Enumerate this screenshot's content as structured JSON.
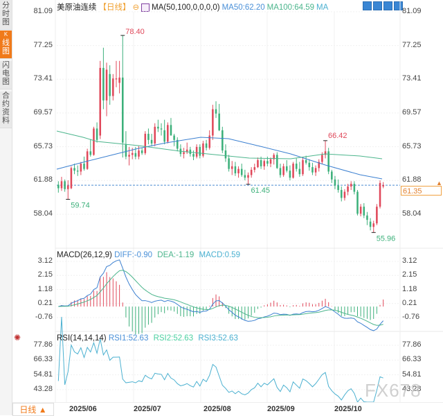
{
  "sidebar": {
    "tabs": [
      {
        "label": "分时图",
        "active": false
      },
      {
        "label": "K线图",
        "k": "K",
        "rest": "线图",
        "active": true
      },
      {
        "label": "闪电图",
        "active": false
      },
      {
        "label": "合约资料",
        "active": false
      }
    ]
  },
  "header": {
    "instrument": "美原油连续",
    "period": "【日线】",
    "ma_label": "MA(50,100,0,0,0,0)",
    "ma50": "MA50:62.20",
    "ma100": "MA100:64.59",
    "ma_extra": "MA",
    "toolbar_icons": [
      "crosshair-icon",
      "chart-icon",
      "draw-icon",
      "exit-icon"
    ]
  },
  "price_axis": [
    "81.09",
    "77.25",
    "73.41",
    "69.57",
    "65.73",
    "61.88",
    "58.04"
  ],
  "macd": {
    "label": "MACD(26,12,9)",
    "diff": "DIFF:-0.90",
    "dea": "DEA:-1.19",
    "macd": "MACD:0.59",
    "axis": [
      "3.12",
      "2.15",
      "1.18",
      "0.21",
      "-0.76"
    ]
  },
  "rsi": {
    "label": "RSI(14,14,14)",
    "rsi1": "RSI1:52.63",
    "rsi2": "RSI2:52.63",
    "rsi3": "RSI3:52.63",
    "axis": [
      "77.86",
      "66.33",
      "54.81",
      "43.28"
    ]
  },
  "last_price": "61.35",
  "annotations": {
    "high1": "78.40",
    "low1": "59.74",
    "low2": "61.45",
    "high2": "66.42",
    "low3": "55.96"
  },
  "bottom": {
    "period_select": "日线 ▲",
    "x_labels": [
      "2025/06",
      "2025/07",
      "2025/08",
      "2025/09",
      "2025/10"
    ]
  },
  "watermark": "FX678",
  "colors": {
    "up": "#e0485a",
    "down": "#3cb07a",
    "ma50": "#3a7fd0",
    "ma100": "#4bb58c",
    "accent": "#f07a1a"
  },
  "chart_data": {
    "type": "candlestick",
    "title": "美原油连续 【日线】",
    "ylim": [
      55,
      81.09
    ],
    "x_tick_labels": [
      "2025/06",
      "2025/07",
      "2025/08",
      "2025/09",
      "2025/10"
    ],
    "annotations": [
      {
        "label": "78.40",
        "type": "high"
      },
      {
        "label": "59.74",
        "type": "low"
      },
      {
        "label": "61.45",
        "type": "low"
      },
      {
        "label": "66.42",
        "type": "high"
      },
      {
        "label": "55.96",
        "type": "low"
      }
    ],
    "candles": [
      [
        61.4,
        61.8,
        60.5,
        61.0
      ],
      [
        61.0,
        62.3,
        60.7,
        61.8
      ],
      [
        61.8,
        62.0,
        60.6,
        60.9
      ],
      [
        60.9,
        61.9,
        59.74,
        61.3
      ],
      [
        61.0,
        63.5,
        60.9,
        63.3
      ],
      [
        63.3,
        63.8,
        62.6,
        63.0
      ],
      [
        63.0,
        63.6,
        62.4,
        62.9
      ],
      [
        62.9,
        64.0,
        62.5,
        63.8
      ],
      [
        63.8,
        64.6,
        63.0,
        63.2
      ],
      [
        63.2,
        65.5,
        63.1,
        65.2
      ],
      [
        65.2,
        66.6,
        64.6,
        64.8
      ],
      [
        64.8,
        68.0,
        64.7,
        67.8
      ],
      [
        67.8,
        68.5,
        66.2,
        66.5
      ],
      [
        67.0,
        75.5,
        66.6,
        74.7
      ],
      [
        74.7,
        77.0,
        70.0,
        71.0
      ],
      [
        71.0,
        75.3,
        69.2,
        74.5
      ],
      [
        74.0,
        75.0,
        70.5,
        71.5
      ],
      [
        71.5,
        74.0,
        71.0,
        73.5
      ],
      [
        73.4,
        75.5,
        72.5,
        73.5
      ],
      [
        73.0,
        75.5,
        71.8,
        73.6
      ],
      [
        73.6,
        78.4,
        64.5,
        66.2
      ],
      [
        66.0,
        67.5,
        64.3,
        64.6
      ],
      [
        64.6,
        65.7,
        63.6,
        64.8
      ],
      [
        64.8,
        65.6,
        64.3,
        65.0
      ],
      [
        65.0,
        65.7,
        64.3,
        64.6
      ],
      [
        64.6,
        65.8,
        64.3,
        65.3
      ],
      [
        65.3,
        65.6,
        64.8,
        65.0
      ],
      [
        65.0,
        67.5,
        64.8,
        67.2
      ],
      [
        67.2,
        67.8,
        66.0,
        66.5
      ],
      [
        66.5,
        67.2,
        65.8,
        66.1
      ],
      [
        66.1,
        68.4,
        65.8,
        68.0
      ],
      [
        68.0,
        68.8,
        67.4,
        67.8
      ],
      [
        67.8,
        68.4,
        67.0,
        67.7
      ],
      [
        67.6,
        68.8,
        66.0,
        66.3
      ],
      [
        66.3,
        68.5,
        66.1,
        68.2
      ],
      [
        68.2,
        69.0,
        67.5,
        67.0
      ],
      [
        67.0,
        67.2,
        65.8,
        66.5
      ],
      [
        66.5,
        66.8,
        65.2,
        65.5
      ],
      [
        65.5,
        66.0,
        64.6,
        64.9
      ],
      [
        64.9,
        65.6,
        64.4,
        65.1
      ],
      [
        65.1,
        66.2,
        64.9,
        65.4
      ],
      [
        65.4,
        65.7,
        64.6,
        64.9
      ],
      [
        64.9,
        65.3,
        64.2,
        64.6
      ],
      [
        64.6,
        66.0,
        64.4,
        65.7
      ],
      [
        65.7,
        66.0,
        64.4,
        64.7
      ],
      [
        64.7,
        66.4,
        64.5,
        66.1
      ],
      [
        66.1,
        66.5,
        65.3,
        65.6
      ],
      [
        65.6,
        67.6,
        65.4,
        67.0
      ],
      [
        67.0,
        70.5,
        66.5,
        70.0
      ],
      [
        70.0,
        70.9,
        69.0,
        69.5
      ],
      [
        69.5,
        70.6,
        67.5,
        67.6
      ],
      [
        67.6,
        68.0,
        65.0,
        65.3
      ],
      [
        65.3,
        66.0,
        64.0,
        64.4
      ],
      [
        64.4,
        64.8,
        62.9,
        63.2
      ],
      [
        63.2,
        64.1,
        62.5,
        63.5
      ],
      [
        63.5,
        64.0,
        62.4,
        62.7
      ],
      [
        62.7,
        63.5,
        62.2,
        63.2
      ],
      [
        63.2,
        63.8,
        62.3,
        62.5
      ],
      [
        62.5,
        63.1,
        61.9,
        62.2
      ],
      [
        62.2,
        62.8,
        61.45,
        62.5
      ],
      [
        62.5,
        63.4,
        62.2,
        63.1
      ],
      [
        63.1,
        63.8,
        62.8,
        63.4
      ],
      [
        63.4,
        64.5,
        63.3,
        64.2
      ],
      [
        64.2,
        64.6,
        63.2,
        63.5
      ],
      [
        63.5,
        64.3,
        63.1,
        64.1
      ],
      [
        64.1,
        64.6,
        63.5,
        63.8
      ],
      [
        63.8,
        64.5,
        63.4,
        64.3
      ],
      [
        64.3,
        65.0,
        63.7,
        64.8
      ],
      [
        64.8,
        65.1,
        63.2,
        63.3
      ],
      [
        63.3,
        63.8,
        62.2,
        62.5
      ],
      [
        62.5,
        63.8,
        62.3,
        63.5
      ],
      [
        63.5,
        64.2,
        62.8,
        63.0
      ],
      [
        63.0,
        63.6,
        61.9,
        62.2
      ],
      [
        62.2,
        64.0,
        62.1,
        63.8
      ],
      [
        63.8,
        64.4,
        62.9,
        63.2
      ],
      [
        63.2,
        64.0,
        62.3,
        62.6
      ],
      [
        62.6,
        64.5,
        62.4,
        64.2
      ],
      [
        64.2,
        64.7,
        63.7,
        63.9
      ],
      [
        63.9,
        64.3,
        63.0,
        63.4
      ],
      [
        63.4,
        63.9,
        62.5,
        62.8
      ],
      [
        62.8,
        63.6,
        62.4,
        63.3
      ],
      [
        63.3,
        64.3,
        62.9,
        64.0
      ],
      [
        64.0,
        65.1,
        63.8,
        64.8
      ],
      [
        64.8,
        66.42,
        64.4,
        65.2
      ],
      [
        65.2,
        65.6,
        62.6,
        62.9
      ],
      [
        62.9,
        63.1,
        61.6,
        62.0
      ],
      [
        62.0,
        62.4,
        60.9,
        61.3
      ],
      [
        61.3,
        62.0,
        60.5,
        60.8
      ],
      [
        60.8,
        61.2,
        59.5,
        59.9
      ],
      [
        59.9,
        60.9,
        59.6,
        60.6
      ],
      [
        60.6,
        61.5,
        60.2,
        61.2
      ],
      [
        61.2,
        61.8,
        60.8,
        61.5
      ],
      [
        61.5,
        61.8,
        60.3,
        60.6
      ],
      [
        60.6,
        60.8,
        57.9,
        58.1
      ],
      [
        58.1,
        59.2,
        57.8,
        58.9
      ],
      [
        58.9,
        59.3,
        57.6,
        57.9
      ],
      [
        57.9,
        58.3,
        56.8,
        57.4
      ],
      [
        57.2,
        57.6,
        56.2,
        56.6
      ],
      [
        56.6,
        57.3,
        55.96,
        57.0
      ],
      [
        57.0,
        59.2,
        56.8,
        58.9
      ],
      [
        58.9,
        61.9,
        58.7,
        61.6
      ],
      [
        61.2,
        61.7,
        61.0,
        61.35
      ]
    ],
    "series": [
      {
        "name": "MA50",
        "last": 62.2
      },
      {
        "name": "MA100",
        "last": 64.59
      }
    ],
    "indicators": {
      "MACD": {
        "DIFF": -0.9,
        "DEA": -1.19,
        "MACD": 0.59,
        "ylim": [
          -1.3,
          3.5
        ]
      },
      "RSI": {
        "RSI1": 52.63,
        "RSI2": 52.63,
        "RSI3": 52.63,
        "ylim": [
          35,
          82
        ]
      }
    }
  }
}
